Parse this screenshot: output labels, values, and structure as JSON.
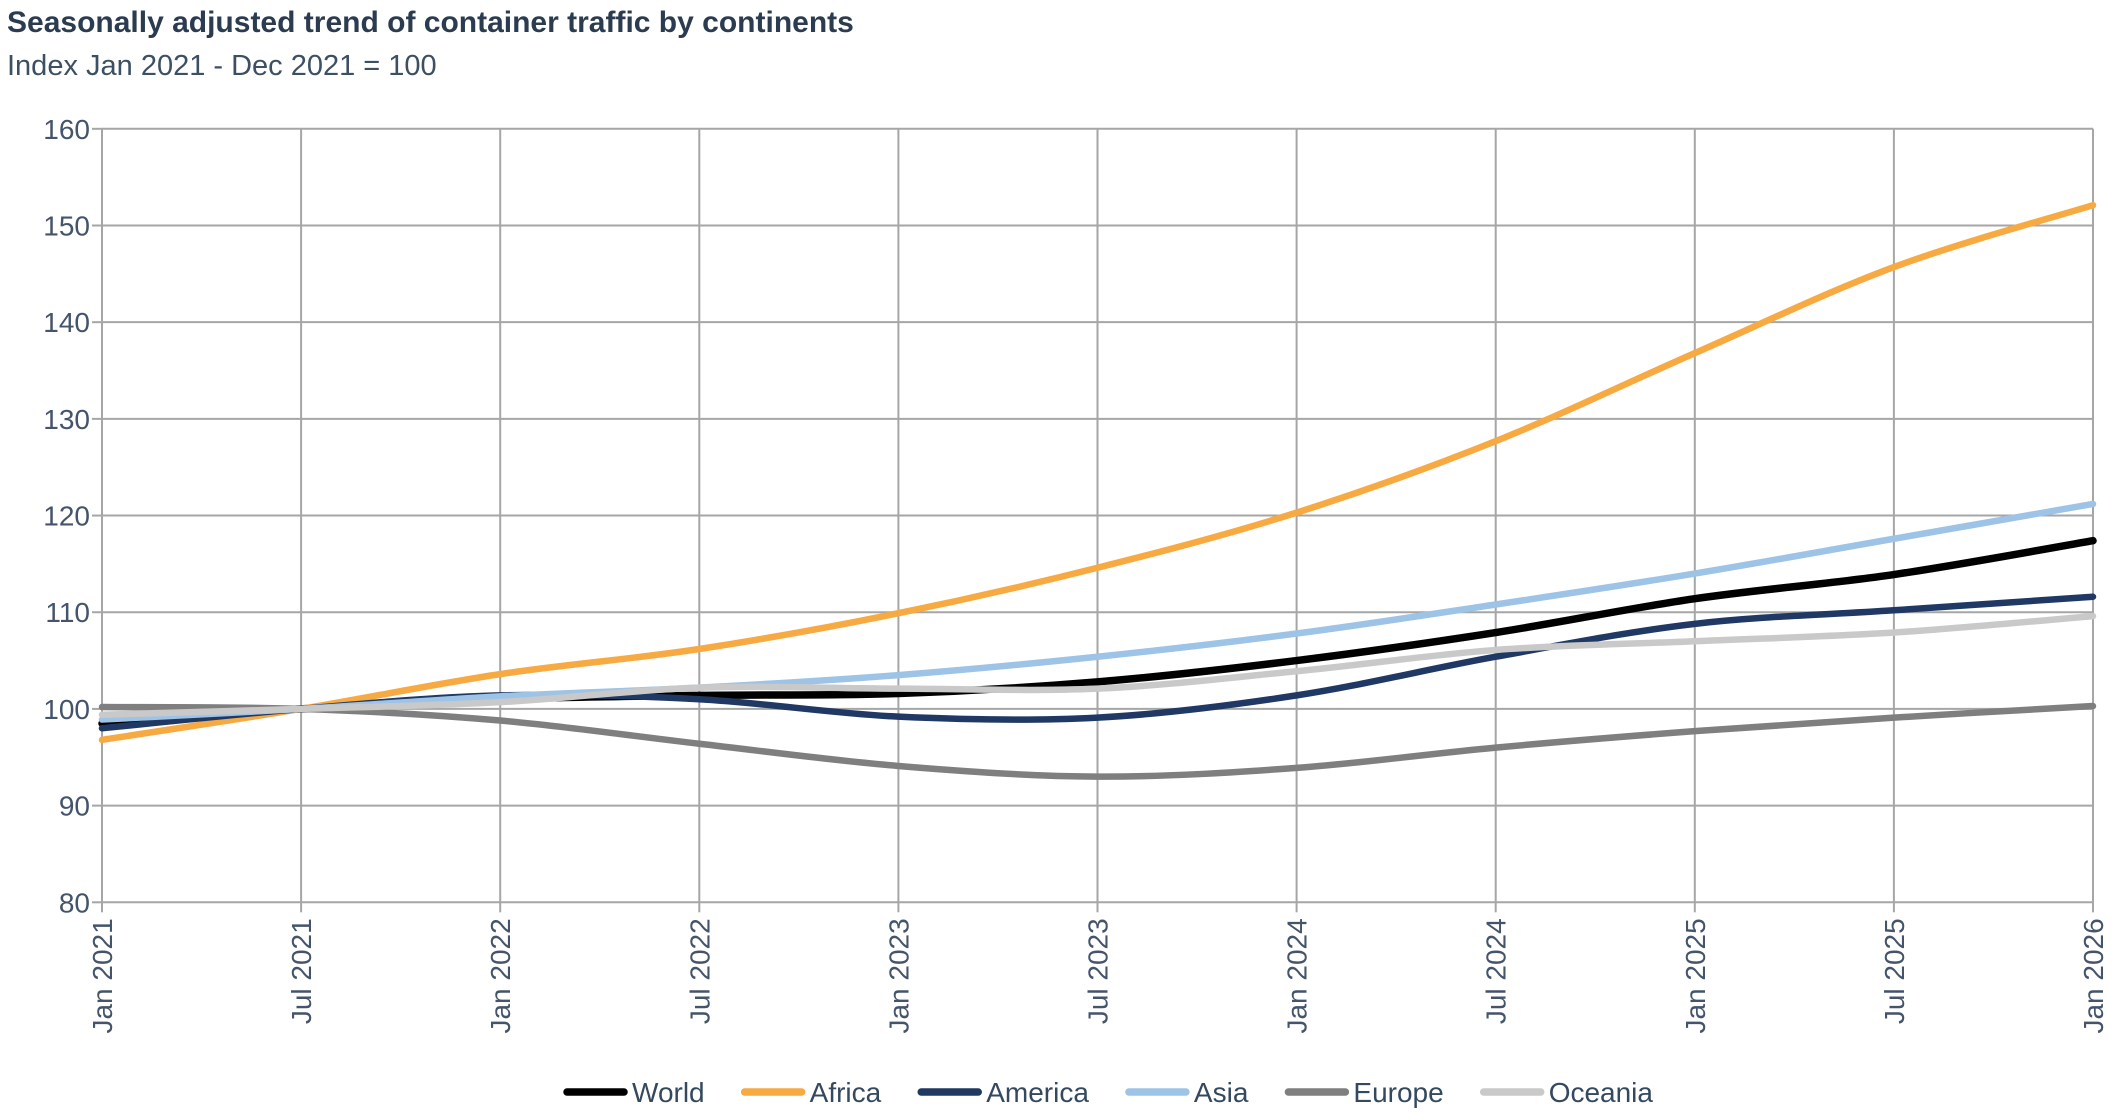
{
  "header": {
    "title": "Seasonally adjusted trend of container traffic by continents",
    "subtitle": "Index Jan 2021 - Dec 2021 = 100"
  },
  "colors": {
    "grid": "#A6A6A6",
    "axis_text": "#44546A",
    "title_text": "#2B3C50"
  },
  "chart_data": {
    "type": "line",
    "title": "Seasonally adjusted trend of container traffic by continents",
    "subtitle": "Index Jan 2021 - Dec 2021 = 100",
    "grid": true,
    "legend_position": "bottom",
    "y_axis": {
      "min": 80,
      "max": 160,
      "step": 10
    },
    "categories": [
      "Jan 2021",
      "Jul 2021",
      "Jan 2022",
      "Jul 2022",
      "Jan 2023",
      "Jul 2023",
      "Jan 2024",
      "Jul 2024",
      "Jan 2025",
      "Jul 2025",
      "Jan 2026"
    ],
    "series": [
      {
        "name": "World",
        "color": "#000000",
        "values": [
          98.5,
          100,
          101.0,
          101.4,
          101.6,
          102.8,
          105.0,
          107.9,
          111.4,
          113.9,
          117.4
        ]
      },
      {
        "name": "Africa",
        "color": "#F7A942",
        "values": [
          96.8,
          100,
          103.6,
          106.2,
          109.9,
          114.6,
          120.3,
          127.7,
          136.8,
          145.7,
          152.1
        ]
      },
      {
        "name": "America",
        "color": "#1F3864",
        "values": [
          98.0,
          100,
          101.4,
          101.0,
          99.2,
          99.1,
          101.4,
          105.4,
          108.8,
          110.2,
          111.6
        ]
      },
      {
        "name": "Asia",
        "color": "#9DC3E6",
        "values": [
          98.9,
          100,
          101.3,
          102.2,
          103.5,
          105.4,
          107.8,
          110.8,
          114.0,
          117.6,
          121.2
        ]
      },
      {
        "name": "Europe",
        "color": "#7F7F7F",
        "values": [
          100.2,
          100,
          98.8,
          96.4,
          94.1,
          93.0,
          93.9,
          96.0,
          97.7,
          99.1,
          100.3
        ]
      },
      {
        "name": "Oceania",
        "color": "#C9C9C9",
        "values": [
          99.4,
          100,
          100.7,
          102.2,
          102.1,
          102.1,
          103.9,
          106.1,
          107.0,
          107.9,
          109.6
        ]
      }
    ]
  }
}
